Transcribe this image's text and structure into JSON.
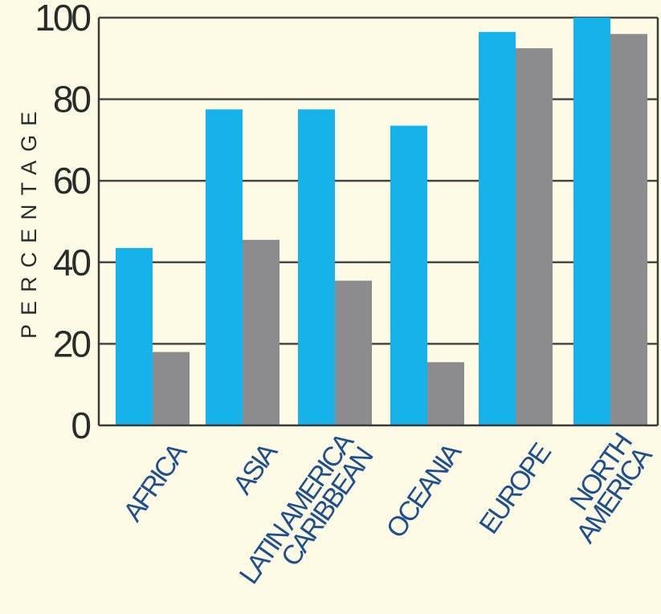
{
  "chart_data": {
    "type": "bar",
    "ylabel": "PERCENTAGE",
    "xlabel": "",
    "ylim": [
      0,
      100
    ],
    "yticks": [
      "0",
      "20",
      "40",
      "60",
      "80",
      "100"
    ],
    "grid": "horizontal",
    "categories": [
      [
        "AFRICA"
      ],
      [
        "ASIA"
      ],
      [
        "LATIN AMERICA",
        "CARIBBEAN"
      ],
      [
        "OCEANIA"
      ],
      [
        "EUROPE"
      ],
      [
        "NORTH",
        "AMERICA"
      ]
    ],
    "series": [
      {
        "color": "#15b3ea",
        "values": [
          43.5,
          77.5,
          77.5,
          73.5,
          96.5,
          100
        ]
      },
      {
        "color": "#8c8c8f",
        "values": [
          18,
          45.5,
          35.5,
          15.5,
          92.5,
          96
        ]
      }
    ],
    "colors": {
      "background": "#fdfbe6",
      "grid": "#474747",
      "axis": "#3a3a3a"
    }
  }
}
